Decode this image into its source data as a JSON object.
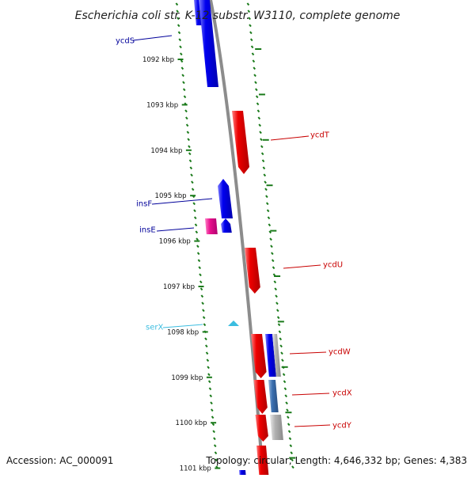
{
  "title": "Escherichia coli str. K-12 substr. W3110, complete genome",
  "footer": {
    "accession": "Accession: AC_000091",
    "summary": "Topology: circular; Length: 4,646,332 bp; Genes: 4,383"
  },
  "colors": {
    "forward_strand": "#0000ee",
    "reverse_strand": "#ee0000",
    "mobile_element": "#e8108c",
    "trna": "#3bbde0",
    "other_forward": "#3a6fb0",
    "other_reverse": "#b0b0b0",
    "tick": "#1a7a1a",
    "backbone": "#8c8c8c"
  },
  "ticks": [
    "1092 kbp",
    "1093 kbp",
    "1094 kbp",
    "1095 kbp",
    "1096 kbp",
    "1097 kbp",
    "1098 kbp",
    "1099 kbp",
    "1100 kbp",
    "1101 kbp"
  ],
  "genes": [
    {
      "name": "ycdS",
      "strand": "forward",
      "color_key": "forward_strand"
    },
    {
      "name": "ycdT",
      "strand": "reverse",
      "color_key": "reverse_strand"
    },
    {
      "name": "insF",
      "strand": "forward",
      "color_key": "forward_strand"
    },
    {
      "name": "insE",
      "strand": "forward",
      "color_key": "forward_strand"
    },
    {
      "name": "ycdU",
      "strand": "reverse",
      "color_key": "reverse_strand"
    },
    {
      "name": "serX",
      "strand": "forward",
      "color_key": "trna"
    },
    {
      "name": "ycdW",
      "strand": "reverse",
      "color_key": "reverse_strand"
    },
    {
      "name": "ycdX",
      "strand": "reverse",
      "color_key": "reverse_strand"
    },
    {
      "name": "ycdY",
      "strand": "reverse",
      "color_key": "reverse_strand"
    }
  ]
}
